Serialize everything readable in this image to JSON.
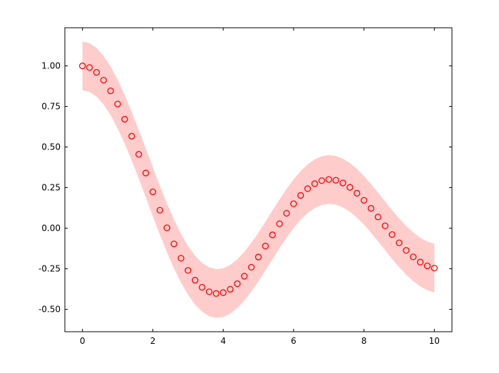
{
  "chart_data": {
    "type": "scatter",
    "x": [
      0,
      0.2,
      0.4,
      0.6,
      0.8,
      1,
      1.2,
      1.4,
      1.6,
      1.8,
      2,
      2.2,
      2.4,
      2.6,
      2.8,
      3,
      3.2,
      3.4,
      3.6,
      3.8,
      4,
      4.2,
      4.4,
      4.6,
      4.8,
      5,
      5.2,
      5.4,
      5.6,
      5.8,
      6,
      6.2,
      6.4,
      6.6,
      6.8,
      7,
      7.2,
      7.4,
      7.6,
      7.8,
      8,
      8.2,
      8.4,
      8.6,
      8.8,
      9,
      9.2,
      9.4,
      9.6,
      9.8,
      10
    ],
    "series": [
      {
        "color": "#ff0000",
        "values": [
          1,
          0.99,
          0.9604,
          0.912,
          0.8463,
          0.7652,
          0.6711,
          0.5669,
          0.4554,
          0.34,
          0.2239,
          0.1104,
          0.0025,
          -0.0968,
          -0.185,
          -0.2601,
          -0.3202,
          -0.3643,
          -0.3918,
          -0.4026,
          -0.3971,
          -0.3766,
          -0.3423,
          -0.2961,
          -0.2404,
          -0.1776,
          -0.1103,
          -0.0412,
          0.027,
          0.0917,
          0.1506,
          0.2017,
          0.2433,
          0.274,
          0.2931,
          0.3001,
          0.2951,
          0.2786,
          0.2516,
          0.2154,
          0.1717,
          0.1222,
          0.0692,
          0.0146,
          -0.0392,
          -0.0903,
          -0.1367,
          -0.1768,
          -0.209,
          -0.2323,
          -0.2459
        ]
      }
    ],
    "band": {
      "color": "#ffcccc",
      "upper": [
        1.15,
        1.14,
        1.1104,
        1.062,
        0.9963,
        0.9152,
        0.8211,
        0.7169,
        0.6054,
        0.49,
        0.3739,
        0.2604,
        0.1525,
        0.0532,
        -0.035,
        -0.1101,
        -0.1702,
        -0.2143,
        -0.2418,
        -0.2526,
        -0.2471,
        -0.2266,
        -0.1923,
        -0.1461,
        -0.0904,
        -0.0276,
        0.0397,
        0.1088,
        0.177,
        0.2417,
        0.3006,
        0.3517,
        0.3933,
        0.424,
        0.4431,
        0.4501,
        0.4451,
        0.4286,
        0.4016,
        0.3654,
        0.3217,
        0.2722,
        0.2192,
        0.1646,
        0.1108,
        0.0597,
        0.0133,
        -0.0268,
        -0.059,
        -0.0823,
        -0.0959
      ],
      "lower": [
        0.85,
        0.84,
        0.8104,
        0.762,
        0.6963,
        0.6152,
        0.5211,
        0.4169,
        0.3054,
        0.19,
        0.0739,
        -0.0396,
        -0.1475,
        -0.2468,
        -0.335,
        -0.4101,
        -0.4702,
        -0.5143,
        -0.5418,
        -0.5526,
        -0.5471,
        -0.5266,
        -0.4923,
        -0.4461,
        -0.3904,
        -0.3276,
        -0.2603,
        -0.1912,
        -0.123,
        -0.0583,
        0.0006,
        0.0517,
        0.0933,
        0.124,
        0.1431,
        0.1501,
        0.1451,
        0.1286,
        0.1016,
        0.0654,
        0.0217,
        -0.0278,
        -0.0808,
        -0.1354,
        -0.1892,
        -0.2403,
        -0.2867,
        -0.3268,
        -0.359,
        -0.3823,
        -0.3959
      ]
    },
    "xlim": [
      -0.5,
      10.5
    ],
    "ylim": [
      -0.638,
      1.235
    ],
    "xticks": [
      0,
      2,
      4,
      6,
      8,
      10
    ],
    "yticks": [
      {
        "value": -0.5,
        "label": "-0.50"
      },
      {
        "value": -0.25,
        "label": "-0.25"
      },
      {
        "value": 0,
        "label": "0.00"
      },
      {
        "value": 0.25,
        "label": "0.25"
      },
      {
        "value": 0.5,
        "label": "0.50"
      },
      {
        "value": 0.75,
        "label": "0.75"
      },
      {
        "value": 1,
        "label": "1.00"
      }
    ],
    "grid": false
  }
}
